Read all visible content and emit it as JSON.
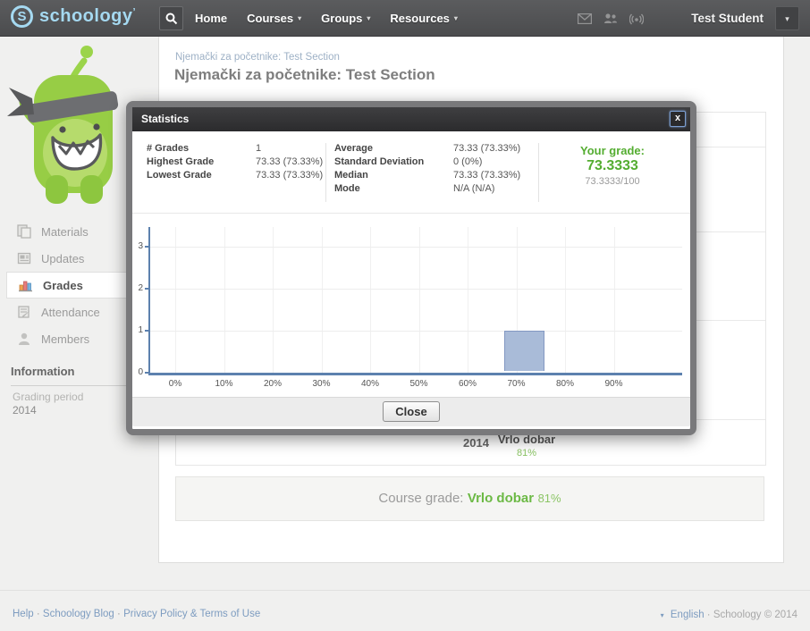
{
  "navbar": {
    "brand": "schoology",
    "brand_mark": "’",
    "brand_initial": "S",
    "caret": "▾",
    "links": [
      {
        "label": "Home"
      },
      {
        "label": "Courses",
        "caret": true
      },
      {
        "label": "Groups",
        "caret": true
      },
      {
        "label": "Resources",
        "caret": true
      }
    ],
    "user": "Test Student"
  },
  "breadcrumb": "Njemački za početnike: Test Section",
  "page_title": "Njemački za početnike: Test Section",
  "sidebar": {
    "items": [
      {
        "label": "Materials"
      },
      {
        "label": "Updates"
      },
      {
        "label": "Grades"
      },
      {
        "label": "Attendance"
      },
      {
        "label": "Members"
      }
    ],
    "info_heading": "Information",
    "grading_period_label": "Grading period",
    "grading_period_value": "2014"
  },
  "modal": {
    "title": "Statistics",
    "close_x": "x",
    "stats_left": [
      {
        "label": "# Grades",
        "value": "1"
      },
      {
        "label": "Highest Grade",
        "value": "73.33 (73.33%)"
      },
      {
        "label": "Lowest Grade",
        "value": "73.33 (73.33%)"
      }
    ],
    "stats_right": [
      {
        "label": "Average",
        "value": "73.33 (73.33%)"
      },
      {
        "label": "Standard Deviation",
        "value": "0 (0%)"
      },
      {
        "label": "Median",
        "value": "73.33 (73.33%)"
      },
      {
        "label": "Mode",
        "value": "N/A (N/A)"
      }
    ],
    "your_grade_label": "Your grade:",
    "your_grade_value": "73.3333",
    "your_grade_detail": "73.3333/100",
    "close_label": "Close"
  },
  "chart_data": {
    "type": "bar",
    "title": "",
    "xlabel": "",
    "ylabel": "",
    "x_tick_labels": [
      "0%",
      "10%",
      "20%",
      "30%",
      "40%",
      "50%",
      "60%",
      "70%",
      "80%",
      "90%"
    ],
    "y_tick_labels": [
      "0",
      "1",
      "2",
      "3"
    ],
    "counts": [
      0,
      0,
      0,
      0,
      0,
      0,
      0,
      1,
      0,
      0
    ],
    "ylim": [
      0,
      3.5
    ],
    "grid": true,
    "legend": "none"
  },
  "content": {
    "period_year": "2014",
    "period_grade": "Vrlo dobar",
    "period_pct": "81%",
    "course_grade_label": "Course grade:",
    "course_grade_value": "Vrlo dobar",
    "course_grade_pct": "81%"
  },
  "footer": {
    "separator": "·",
    "links": [
      {
        "label": "Help"
      },
      {
        "label": "Schoology Blog"
      },
      {
        "label": "Privacy Policy & Terms of Use"
      }
    ],
    "language": "English",
    "copyright": "Schoology © 2014"
  },
  "colors": {
    "brand_blue": "#a5d9f1",
    "grade_green": "#54ad31",
    "light_green": "#8cc566",
    "bar_fill": "#a9bbd8",
    "bar_border": "#8398c2",
    "axis_blue": "#5d81ae",
    "link_blue": "#7d9cc0"
  }
}
